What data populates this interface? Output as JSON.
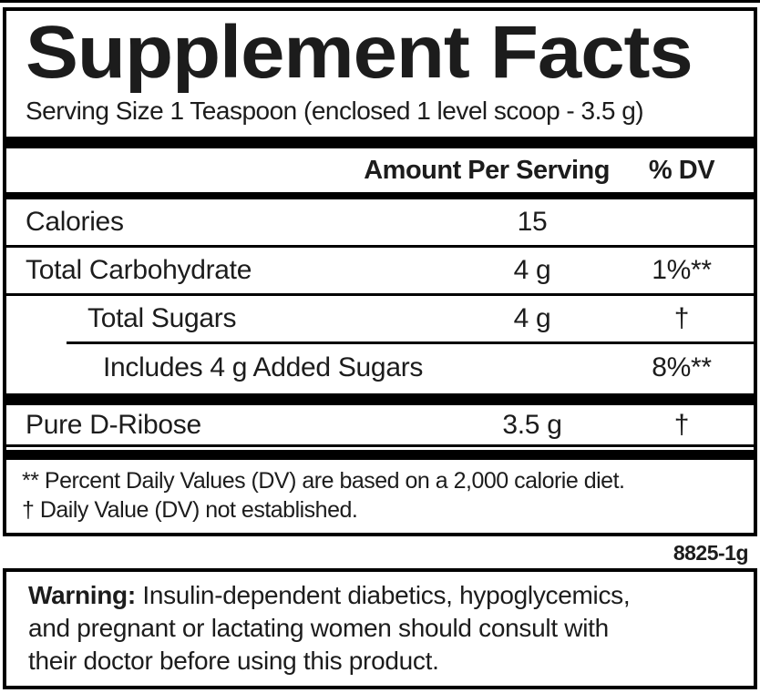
{
  "label": {
    "title": "Supplement Facts",
    "serving_size": "Serving Size 1 Teaspoon (enclosed 1 level scoop - 3.5 g)",
    "columns": {
      "amount": "Amount Per Serving",
      "dv": "% DV"
    },
    "rows": [
      {
        "name": "Calories",
        "amount": "15",
        "dv": ""
      },
      {
        "name": "Total Carbohydrate",
        "amount": "4 g",
        "dv": "1%**"
      },
      {
        "name": "Total Sugars",
        "amount": "4 g",
        "dv": "†"
      },
      {
        "name": "Includes 4 g Added Sugars",
        "amount": "",
        "dv": "8%**"
      },
      {
        "name": "Pure D-Ribose",
        "amount": "3.5 g",
        "dv": "†"
      }
    ],
    "footnotes": [
      "** Percent Daily Values (DV) are based on a 2,000 calorie diet.",
      "† Daily Value (DV) not established."
    ],
    "product_code": "8825-1g"
  },
  "warning": {
    "label": "Warning:",
    "lines": [
      " Insulin-dependent diabetics, hypoglycemics,",
      "and pregnant or lactating women should consult with",
      "their doctor before using this product."
    ]
  },
  "colors": {
    "ink": "#1c1c1c",
    "rule": "#000000",
    "background": "#ffffff"
  }
}
